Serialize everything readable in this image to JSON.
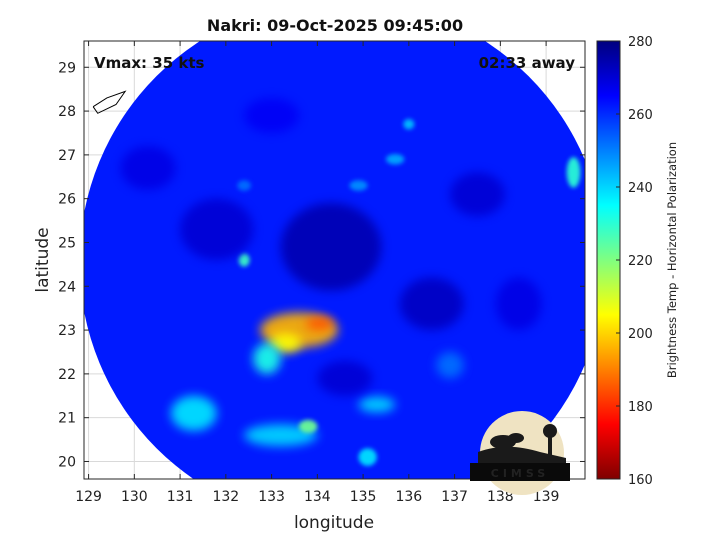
{
  "chart_data": {
    "type": "heatmap",
    "title": "Nakri: 09-Oct-2025 09:45:00",
    "storm_name": "Nakri",
    "annotations": {
      "vmax": "Vmax: 35 kts",
      "distance": "02:33 away"
    },
    "xlabel": "longitude",
    "ylabel": "latitude",
    "xlim": [
      128.9,
      139.85
    ],
    "ylim": [
      19.6,
      29.6
    ],
    "xticks": [
      129,
      130,
      131,
      132,
      133,
      134,
      135,
      136,
      137,
      138,
      139
    ],
    "yticks": [
      20,
      21,
      22,
      23,
      24,
      25,
      26,
      27,
      28,
      29
    ],
    "grid": true,
    "colorbar": {
      "label": "Brightness Temp - Horizontal Polarization",
      "range": [
        160,
        280
      ],
      "ticks": [
        160,
        180,
        200,
        220,
        240,
        260,
        280
      ],
      "colormap": "parula-jet",
      "stops": [
        "#7f0000",
        "#ff0000",
        "#ff8000",
        "#ffff00",
        "#80ff80",
        "#00ffff",
        "#0080ff",
        "#0000ff",
        "#00007f"
      ]
    },
    "swath": {
      "center": [
        134.55,
        24.55
      ],
      "radius_deg": 5.75
    },
    "background_tb": 262,
    "features": [
      {
        "lon": 133.6,
        "lat": 23.0,
        "tb": 196,
        "sx": 0.85,
        "sy": 0.4
      },
      {
        "lon": 134.05,
        "lat": 23.15,
        "tb": 185,
        "sx": 0.3,
        "sy": 0.15
      },
      {
        "lon": 133.3,
        "lat": 22.7,
        "tb": 205,
        "sx": 0.35,
        "sy": 0.22
      },
      {
        "lon": 132.9,
        "lat": 22.35,
        "tb": 232,
        "sx": 0.3,
        "sy": 0.35
      },
      {
        "lon": 132.4,
        "lat": 24.6,
        "tb": 228,
        "sx": 0.12,
        "sy": 0.15
      },
      {
        "lon": 131.3,
        "lat": 21.1,
        "tb": 238,
        "sx": 0.5,
        "sy": 0.4
      },
      {
        "lon": 133.2,
        "lat": 20.6,
        "tb": 240,
        "sx": 0.8,
        "sy": 0.25
      },
      {
        "lon": 133.8,
        "lat": 20.8,
        "tb": 222,
        "sx": 0.2,
        "sy": 0.15
      },
      {
        "lon": 135.3,
        "lat": 21.3,
        "tb": 240,
        "sx": 0.4,
        "sy": 0.18
      },
      {
        "lon": 135.1,
        "lat": 20.1,
        "tb": 238,
        "sx": 0.2,
        "sy": 0.2
      },
      {
        "lon": 139.6,
        "lat": 26.6,
        "tb": 230,
        "sx": 0.15,
        "sy": 0.35
      },
      {
        "lon": 136.0,
        "lat": 27.7,
        "tb": 242,
        "sx": 0.12,
        "sy": 0.12
      },
      {
        "lon": 135.7,
        "lat": 26.9,
        "tb": 245,
        "sx": 0.2,
        "sy": 0.12
      },
      {
        "lon": 134.9,
        "lat": 26.3,
        "tb": 248,
        "sx": 0.2,
        "sy": 0.12
      },
      {
        "lon": 132.4,
        "lat": 26.3,
        "tb": 252,
        "sx": 0.15,
        "sy": 0.12
      },
      {
        "lon": 136.9,
        "lat": 22.2,
        "tb": 252,
        "sx": 0.3,
        "sy": 0.3
      },
      {
        "lon": 134.3,
        "lat": 24.9,
        "tb": 274,
        "sx": 1.1,
        "sy": 1.0
      },
      {
        "lon": 131.8,
        "lat": 25.3,
        "tb": 270,
        "sx": 0.8,
        "sy": 0.7
      },
      {
        "lon": 137.5,
        "lat": 26.1,
        "tb": 270,
        "sx": 0.6,
        "sy": 0.5
      },
      {
        "lon": 136.5,
        "lat": 23.6,
        "tb": 272,
        "sx": 0.7,
        "sy": 0.6
      },
      {
        "lon": 134.6,
        "lat": 21.9,
        "tb": 270,
        "sx": 0.6,
        "sy": 0.4
      },
      {
        "lon": 130.3,
        "lat": 26.7,
        "tb": 268,
        "sx": 0.6,
        "sy": 0.5
      },
      {
        "lon": 138.4,
        "lat": 23.6,
        "tb": 268,
        "sx": 0.5,
        "sy": 0.6
      },
      {
        "lon": 133.0,
        "lat": 27.9,
        "tb": 266,
        "sx": 0.6,
        "sy": 0.4
      }
    ],
    "coastline": [
      [
        129.1,
        28.1
      ],
      [
        129.4,
        28.3
      ],
      [
        129.8,
        28.45
      ],
      [
        129.6,
        28.15
      ],
      [
        129.2,
        27.95
      ],
      [
        129.1,
        28.1
      ]
    ],
    "logo_text": "CIMSS"
  }
}
